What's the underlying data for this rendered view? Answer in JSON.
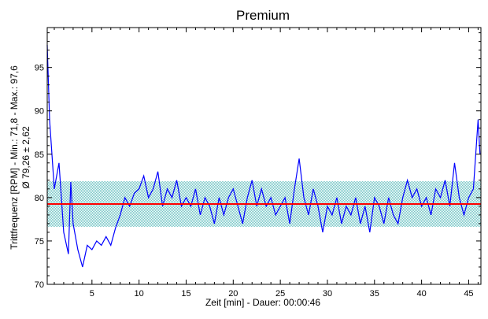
{
  "chart_data": {
    "type": "line",
    "title": "Premium",
    "xlabel": "Zeit [min] - Dauer: 00:00:46",
    "ylabel": "Trittfrequenz [RPM] - Min.: 71,8 - Max.: 97,6",
    "ylabel2": "Ø 79,26 ± 2,62",
    "xlim": [
      0.25,
      46.3
    ],
    "ylim": [
      70,
      99.6
    ],
    "xticks": [
      5,
      10,
      15,
      20,
      25,
      30,
      35,
      40,
      45
    ],
    "yticks": [
      70,
      75,
      80,
      85,
      90,
      95
    ],
    "mean": 79.26,
    "std": 2.62,
    "min": 71.8,
    "max": 97.6,
    "colors": {
      "line": "#0000ff",
      "mean": "#ff0000",
      "band": "#7fcccc"
    },
    "x": [
      0.25,
      0.5,
      1,
      1.5,
      2,
      2.5,
      2.75,
      3,
      3.5,
      4,
      4.5,
      5,
      5.5,
      6,
      6.5,
      7,
      7.5,
      8,
      8.5,
      9,
      9.5,
      10,
      10.5,
      11,
      11.5,
      12,
      12.5,
      13,
      13.5,
      14,
      14.5,
      15,
      15.5,
      16,
      16.5,
      17,
      17.5,
      18,
      18.5,
      19,
      19.5,
      20,
      20.5,
      21,
      21.5,
      22,
      22.5,
      23,
      23.5,
      24,
      24.5,
      25,
      25.5,
      26,
      26.5,
      27,
      27.5,
      28,
      28.5,
      29,
      29.5,
      30,
      30.5,
      31,
      31.5,
      32,
      32.5,
      33,
      33.5,
      34,
      34.5,
      35,
      35.5,
      36,
      36.5,
      37,
      37.5,
      38,
      38.5,
      39,
      39.5,
      40,
      40.5,
      41,
      41.5,
      42,
      42.5,
      43,
      43.5,
      44,
      44.5,
      45,
      45.5,
      46,
      46.2
    ],
    "y": [
      97.6,
      89,
      81,
      84,
      76,
      73.5,
      81.8,
      77,
      74,
      72,
      74.5,
      74,
      75,
      74.5,
      75.5,
      74.5,
      76.5,
      78,
      80,
      79,
      80.5,
      81,
      82.5,
      80,
      81,
      83,
      79,
      81,
      80,
      82,
      79,
      80,
      79,
      81,
      78,
      80,
      79,
      77,
      80,
      78,
      80,
      81,
      79,
      77,
      80,
      82,
      79,
      81,
      79,
      80,
      78,
      79,
      80,
      77,
      81,
      84.5,
      80,
      78,
      81,
      79,
      76,
      79,
      78,
      80,
      77,
      79,
      78,
      80,
      77,
      79,
      76,
      80,
      79,
      77,
      80,
      78,
      77,
      80,
      82,
      80,
      81,
      79,
      80,
      78,
      81,
      80,
      82,
      79,
      84,
      80,
      78,
      80,
      81,
      89,
      85
    ]
  }
}
